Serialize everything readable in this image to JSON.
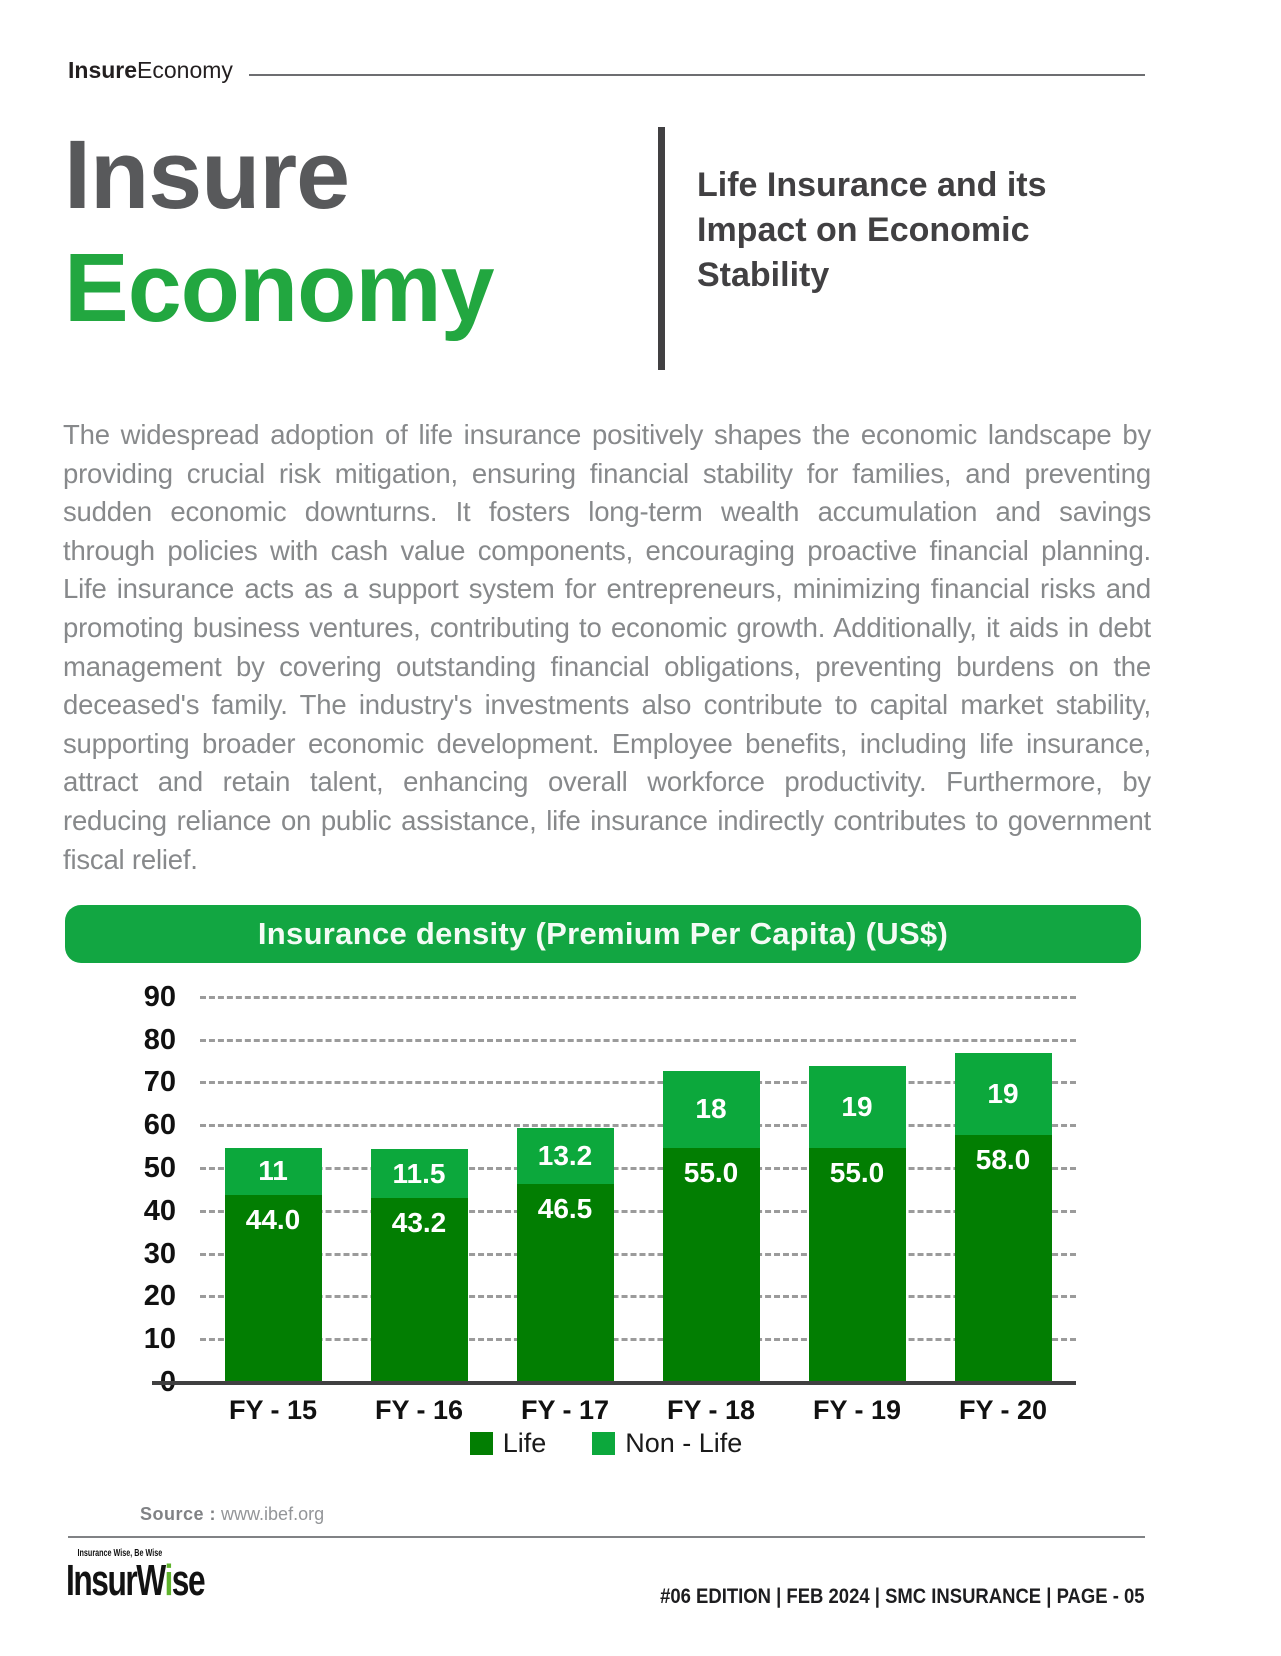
{
  "brand_header": {
    "bold_part": "Insure",
    "regular_part": "Economy"
  },
  "hero": {
    "title_line1": "Insure",
    "title_line2": "Economy",
    "subtitle": "Life Insurance and its Impact on Economic Stability"
  },
  "body_paragraph": "The widespread adoption of life insurance positively shapes the economic landscape by providing crucial risk mitigation, ensuring financial stability for families, and preventing sudden economic downturns. It fosters long-term wealth accumulation and savings through policies with cash value components, encouraging proactive financial planning. Life insurance acts as a support system for entrepreneurs, minimizing financial risks and promoting business ventures, contributing to economic growth. Additionally, it aids in debt management by covering outstanding financial obligations, preventing burdens on the deceased's family. The industry's investments also contribute to capital market stability, supporting broader economic development. Employee benefits, including life insurance, attract and retain talent, enhancing overall workforce productivity. Furthermore, by reducing reliance on public assistance, life insurance indirectly contributes to government fiscal relief.",
  "chart_data": {
    "type": "bar",
    "stacked": true,
    "title": "Insurance density (Premium Per Capita) (US$)",
    "categories": [
      "FY - 15",
      "FY - 16",
      "FY - 17",
      "FY - 18",
      "FY - 19",
      "FY - 20"
    ],
    "series": [
      {
        "name": "Life",
        "color": "#027e02",
        "values": [
          44.0,
          43.2,
          46.5,
          55.0,
          55.0,
          58.0
        ],
        "labels": [
          "44.0",
          "43.2",
          "46.5",
          "55.0",
          "55.0",
          "58.0"
        ]
      },
      {
        "name": "Non - Life",
        "color": "#0ca83c",
        "values": [
          11,
          11.5,
          13.2,
          18,
          19,
          19
        ],
        "labels": [
          "11",
          "11.5",
          "13.2",
          "18",
          "19",
          "19"
        ]
      }
    ],
    "ylim": [
      0,
      90
    ],
    "yticks": [
      0,
      10,
      20,
      30,
      40,
      50,
      60,
      70,
      80,
      90
    ],
    "grid": "horizontal-dashed",
    "legend_position": "bottom",
    "title_bar_color": "#12a642",
    "value_label_color": "#ffffff"
  },
  "source": {
    "label": "Source :",
    "value": "www.ibef.org"
  },
  "footer": {
    "logo_tagline": "Insurance Wise, Be Wise",
    "logo_word_part1": "InsurW",
    "logo_word_green": "i",
    "logo_word_part2": "se",
    "edition_info": "#06 EDITION | FEB 2024 |  SMC INSURANCE | PAGE - 05"
  }
}
